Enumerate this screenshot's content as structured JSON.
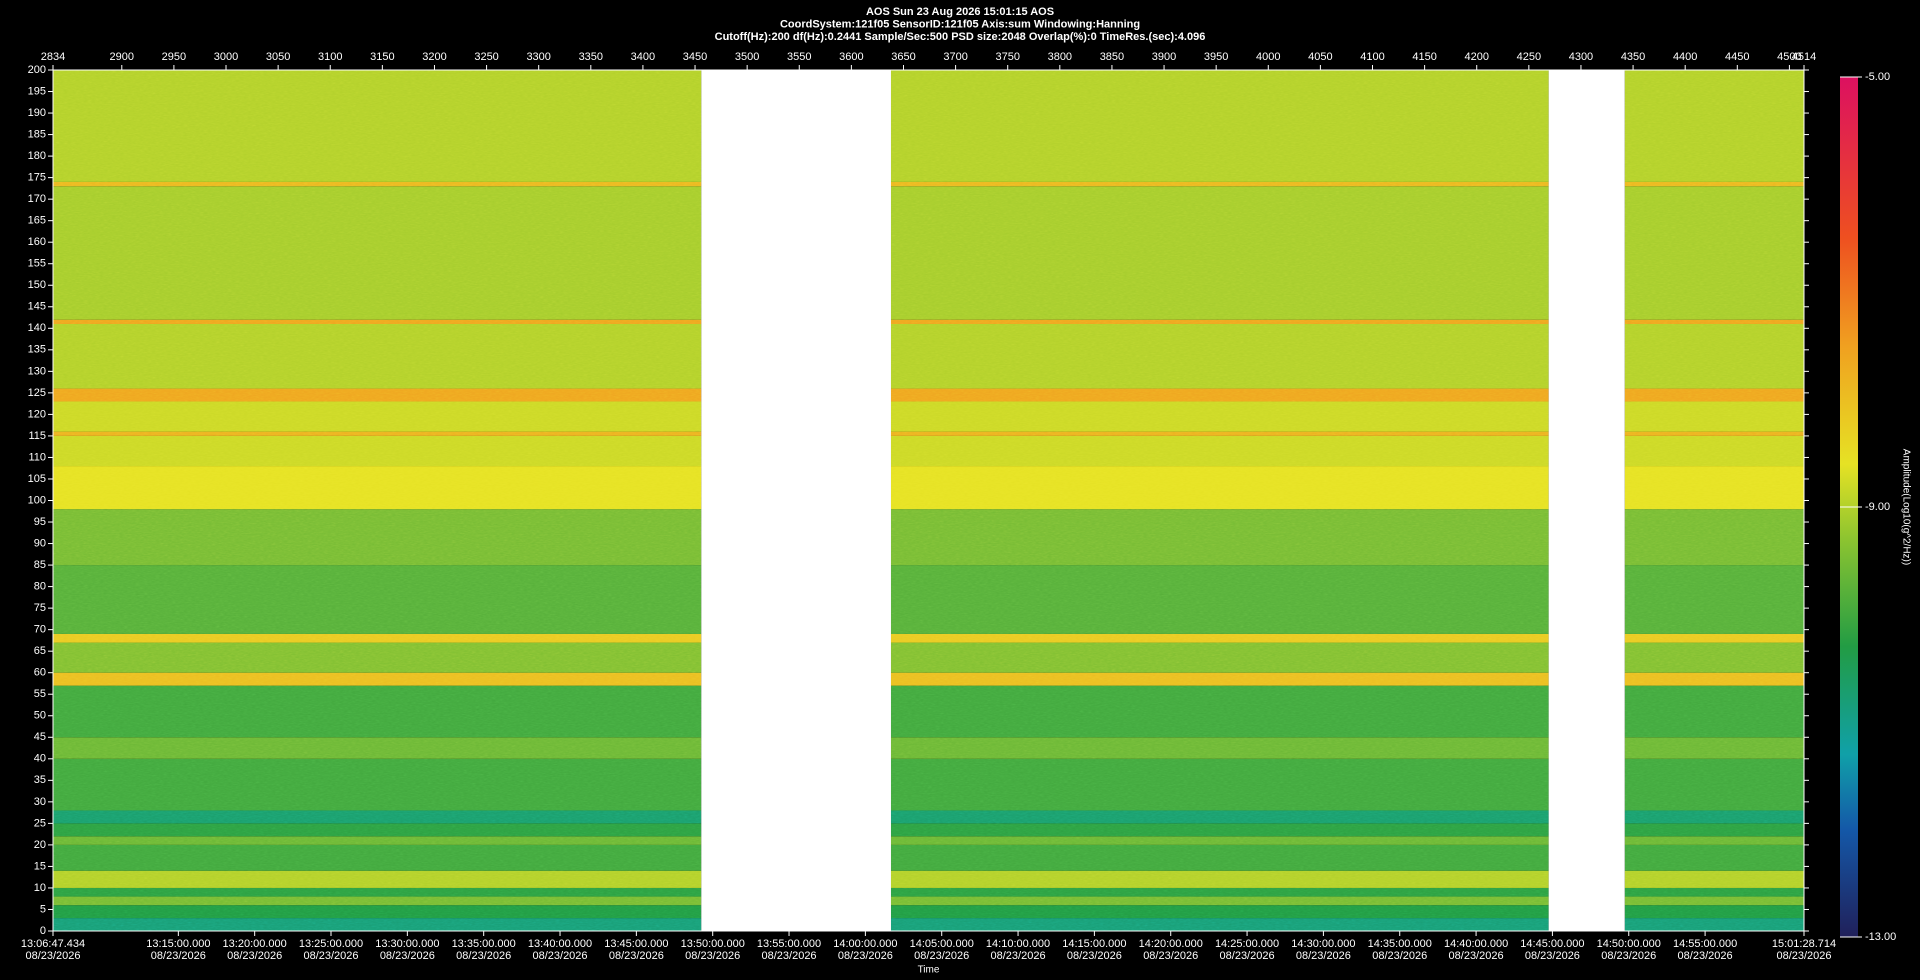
{
  "chart_data": {
    "type": "spectrogram",
    "header": [
      "AOS  Sun 23 Aug 2026 15:01:15  AOS",
      "CoordSystem:121f05   SensorID:121f05   Axis:sum   Windowing:Hanning",
      "Cutoff(Hz):200   df(Hz):0.2441   Sample/Sec:500   PSD size:2048   Overlap(%):0   TimeRes.(sec):4.096"
    ],
    "xlim": [
      2834,
      4514
    ],
    "xticks": [
      2834,
      2900,
      2950,
      3000,
      3050,
      3100,
      3150,
      3200,
      3250,
      3300,
      3350,
      3400,
      3450,
      3500,
      3550,
      3600,
      3650,
      3700,
      3750,
      3800,
      3850,
      3900,
      3950,
      4000,
      4050,
      4100,
      4150,
      4200,
      4250,
      4300,
      4350,
      4400,
      4450,
      4500,
      4514
    ],
    "ylim": [
      0,
      200
    ],
    "yticks": [
      0,
      5,
      10,
      15,
      20,
      25,
      30,
      35,
      40,
      45,
      50,
      55,
      60,
      65,
      70,
      75,
      80,
      85,
      90,
      95,
      100,
      105,
      110,
      115,
      120,
      125,
      130,
      135,
      140,
      145,
      150,
      155,
      160,
      165,
      170,
      175,
      180,
      185,
      190,
      195,
      200
    ],
    "time_axis": {
      "title": "Time",
      "date": "08/23/2026",
      "lim": [
        0,
        6881.28
      ],
      "ticks": [
        {
          "value": 0,
          "label": "13:06:47.434"
        },
        {
          "value": 492.566,
          "label": "13:15:00.000"
        },
        {
          "value": 792.566,
          "label": "13:20:00.000"
        },
        {
          "value": 1092.566,
          "label": "13:25:00.000"
        },
        {
          "value": 1392.566,
          "label": "13:30:00.000"
        },
        {
          "value": 1692.566,
          "label": "13:35:00.000"
        },
        {
          "value": 1992.566,
          "label": "13:40:00.000"
        },
        {
          "value": 2292.566,
          "label": "13:45:00.000"
        },
        {
          "value": 2592.566,
          "label": "13:50:00.000"
        },
        {
          "value": 2892.566,
          "label": "13:55:00.000"
        },
        {
          "value": 3192.566,
          "label": "14:00:00.000"
        },
        {
          "value": 3492.566,
          "label": "14:05:00.000"
        },
        {
          "value": 3792.566,
          "label": "14:10:00.000"
        },
        {
          "value": 4092.566,
          "label": "14:15:00.000"
        },
        {
          "value": 4392.566,
          "label": "14:20:00.000"
        },
        {
          "value": 4692.566,
          "label": "14:25:00.000"
        },
        {
          "value": 4992.566,
          "label": "14:30:00.000"
        },
        {
          "value": 5292.566,
          "label": "14:35:00.000"
        },
        {
          "value": 5592.566,
          "label": "14:40:00.000"
        },
        {
          "value": 5892.566,
          "label": "14:45:00.000"
        },
        {
          "value": 6192.566,
          "label": "14:50:00.000"
        },
        {
          "value": 6492.566,
          "label": "14:55:00.000"
        },
        {
          "value": 6881.28,
          "label": "15:01:28.714"
        }
      ]
    },
    "gaps": [
      [
        3456,
        3638
      ],
      [
        4269,
        4342
      ]
    ],
    "bands": [
      {
        "from": 0,
        "to": 3,
        "level": -10.8
      },
      {
        "from": 3,
        "to": 6,
        "level": -10.3
      },
      {
        "from": 6,
        "to": 8,
        "level": -9.5
      },
      {
        "from": 8,
        "to": 10,
        "level": -10.2
      },
      {
        "from": 10,
        "to": 14,
        "level": -9.0
      },
      {
        "from": 14,
        "to": 20,
        "level": -10.0
      },
      {
        "from": 20,
        "to": 22,
        "level": -9.6
      },
      {
        "from": 22,
        "to": 25,
        "level": -10.2
      },
      {
        "from": 25,
        "to": 28,
        "level": -10.7
      },
      {
        "from": 28,
        "to": 40,
        "level": -10.0
      },
      {
        "from": 40,
        "to": 45,
        "level": -9.6
      },
      {
        "from": 45,
        "to": 57,
        "level": -10.0
      },
      {
        "from": 57,
        "to": 60,
        "level": -8.0
      },
      {
        "from": 60,
        "to": 67,
        "level": -9.4
      },
      {
        "from": 67,
        "to": 69,
        "level": -8.2
      },
      {
        "from": 69,
        "to": 85,
        "level": -9.8
      },
      {
        "from": 85,
        "to": 98,
        "level": -9.5
      },
      {
        "from": 98,
        "to": 108,
        "level": -8.6
      },
      {
        "from": 108,
        "to": 115,
        "level": -8.8
      },
      {
        "from": 115,
        "to": 116,
        "level": -7.8
      },
      {
        "from": 116,
        "to": 123,
        "level": -8.8
      },
      {
        "from": 123,
        "to": 126,
        "level": -7.6
      },
      {
        "from": 126,
        "to": 141,
        "level": -9.0
      },
      {
        "from": 141,
        "to": 142,
        "level": -7.6
      },
      {
        "from": 142,
        "to": 173,
        "level": -9.1
      },
      {
        "from": 173,
        "to": 174,
        "level": -7.9
      },
      {
        "from": 174,
        "to": 200,
        "level": -9.0
      }
    ],
    "colorbar": {
      "label": "Amplitude(Log10(g^2/Hz))",
      "lim": [
        -13,
        -5
      ],
      "ticks": [
        {
          "value": -5,
          "label": "-5.00"
        },
        {
          "value": -9,
          "label": "-9.00"
        },
        {
          "value": -13,
          "label": "-13.00"
        }
      ],
      "colormap": [
        {
          "value": -13,
          "color": "#20205a"
        },
        {
          "value": -12,
          "color": "#1458a8"
        },
        {
          "value": -11.3,
          "color": "#10a0a8"
        },
        {
          "value": -10.3,
          "color": "#229c44"
        },
        {
          "value": -9.3,
          "color": "#8cc430"
        },
        {
          "value": -8.6,
          "color": "#e6e224"
        },
        {
          "value": -7.5,
          "color": "#f0a020"
        },
        {
          "value": -6.5,
          "color": "#ee5020"
        },
        {
          "value": -5,
          "color": "#dc1060"
        }
      ]
    }
  }
}
